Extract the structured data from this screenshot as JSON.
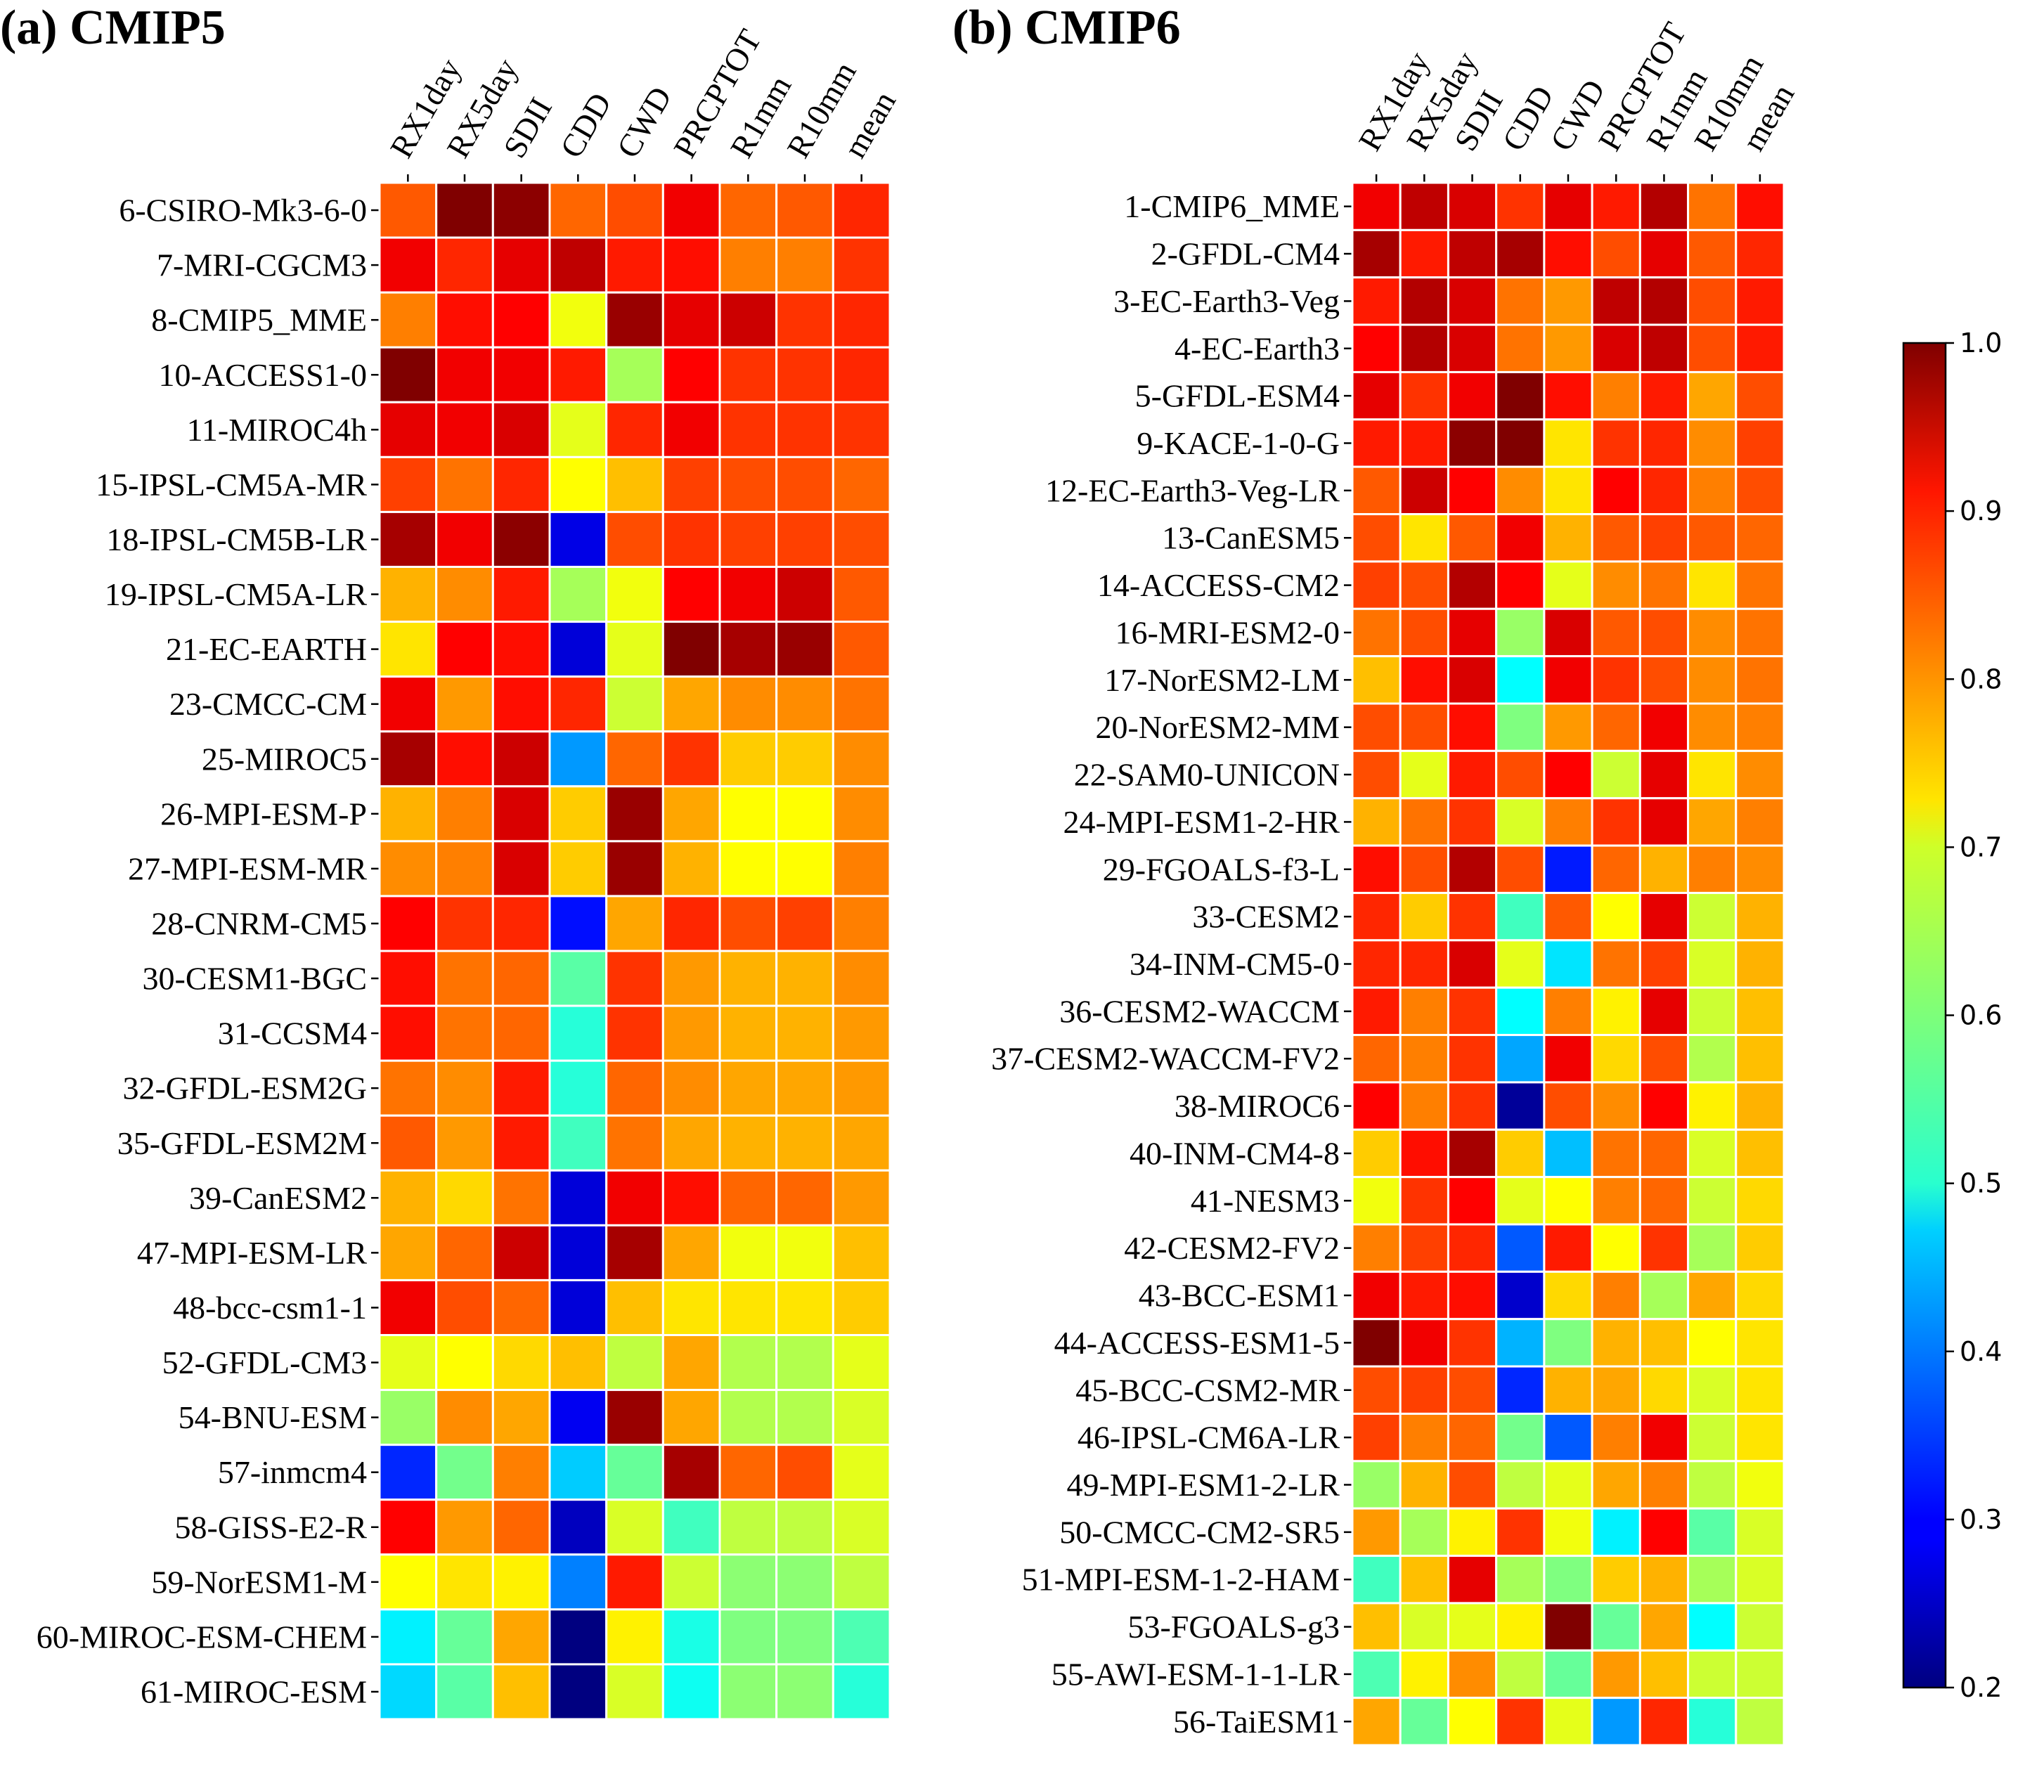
{
  "colors": {
    "colormap": "jet",
    "cell_border": "#ffffff"
  },
  "chart_data": [
    {
      "type": "heatmap",
      "title": "(a) CMIP5",
      "columns": [
        "RX1day",
        "RX5day",
        "SDII",
        "CDD",
        "CWD",
        "PRCPTOT",
        "R1mm",
        "R10mm",
        "mean"
      ],
      "rows": [
        "6-CSIRO-Mk3-6-0",
        "7-MRI-CGCM3",
        "8-CMIP5_MME",
        "10-ACCESS1-0",
        "11-MIROC4h",
        "15-IPSL-CM5A-MR",
        "18-IPSL-CM5B-LR",
        "19-IPSL-CM5A-LR",
        "21-EC-EARTH",
        "23-CMCC-CM",
        "25-MIROC5",
        "26-MPI-ESM-P",
        "27-MPI-ESM-MR",
        "28-CNRM-CM5",
        "30-CESM1-BGC",
        "31-CCSM4",
        "32-GFDL-ESM2G",
        "35-GFDL-ESM2M",
        "39-CanESM2",
        "47-MPI-ESM-LR",
        "48-bcc-csm1-1",
        "52-GFDL-CM3",
        "54-BNU-ESM",
        "57-inmcm4",
        "58-GISS-E2-R",
        "59-NorESM1-M",
        "60-MIROC-ESM-CHEM",
        "61-MIROC-ESM"
      ],
      "values": [
        [
          0.83,
          1.0,
          0.99,
          0.82,
          0.84,
          0.91,
          0.82,
          0.83,
          0.87
        ],
        [
          0.91,
          0.87,
          0.92,
          0.95,
          0.88,
          0.89,
          0.8,
          0.8,
          0.86
        ],
        [
          0.8,
          0.89,
          0.9,
          0.69,
          0.98,
          0.92,
          0.94,
          0.86,
          0.87
        ],
        [
          1.0,
          0.91,
          0.91,
          0.88,
          0.63,
          0.9,
          0.86,
          0.86,
          0.87
        ],
        [
          0.92,
          0.91,
          0.93,
          0.68,
          0.87,
          0.91,
          0.86,
          0.86,
          0.86
        ],
        [
          0.85,
          0.81,
          0.87,
          0.7,
          0.75,
          0.85,
          0.84,
          0.84,
          0.82
        ],
        [
          0.97,
          0.91,
          0.99,
          0.28,
          0.84,
          0.86,
          0.85,
          0.85,
          0.84
        ],
        [
          0.76,
          0.79,
          0.88,
          0.63,
          0.69,
          0.9,
          0.91,
          0.94,
          0.83
        ],
        [
          0.72,
          0.9,
          0.89,
          0.27,
          0.68,
          1.0,
          0.97,
          0.98,
          0.83
        ],
        [
          0.91,
          0.78,
          0.89,
          0.87,
          0.66,
          0.77,
          0.79,
          0.79,
          0.81
        ],
        [
          0.97,
          0.89,
          0.94,
          0.42,
          0.82,
          0.86,
          0.74,
          0.74,
          0.79
        ],
        [
          0.76,
          0.8,
          0.93,
          0.74,
          0.98,
          0.77,
          0.7,
          0.7,
          0.79
        ],
        [
          0.79,
          0.8,
          0.93,
          0.74,
          0.98,
          0.76,
          0.7,
          0.7,
          0.8
        ],
        [
          0.9,
          0.86,
          0.87,
          0.31,
          0.77,
          0.87,
          0.84,
          0.85,
          0.8
        ],
        [
          0.89,
          0.81,
          0.82,
          0.57,
          0.86,
          0.78,
          0.76,
          0.76,
          0.79
        ],
        [
          0.89,
          0.81,
          0.82,
          0.53,
          0.86,
          0.78,
          0.76,
          0.76,
          0.78
        ],
        [
          0.81,
          0.79,
          0.88,
          0.53,
          0.82,
          0.79,
          0.77,
          0.77,
          0.78
        ],
        [
          0.83,
          0.78,
          0.88,
          0.55,
          0.81,
          0.77,
          0.76,
          0.76,
          0.77
        ],
        [
          0.76,
          0.73,
          0.81,
          0.27,
          0.91,
          0.89,
          0.82,
          0.82,
          0.78
        ],
        [
          0.77,
          0.82,
          0.94,
          0.27,
          0.97,
          0.77,
          0.69,
          0.69,
          0.75
        ],
        [
          0.91,
          0.84,
          0.82,
          0.27,
          0.75,
          0.72,
          0.72,
          0.72,
          0.74
        ],
        [
          0.68,
          0.7,
          0.73,
          0.75,
          0.65,
          0.77,
          0.64,
          0.64,
          0.68
        ],
        [
          0.62,
          0.79,
          0.77,
          0.29,
          0.98,
          0.77,
          0.64,
          0.64,
          0.67
        ],
        [
          0.33,
          0.59,
          0.8,
          0.46,
          0.58,
          0.97,
          0.82,
          0.84,
          0.68
        ],
        [
          0.9,
          0.78,
          0.82,
          0.25,
          0.67,
          0.55,
          0.65,
          0.65,
          0.67
        ],
        [
          0.7,
          0.72,
          0.71,
          0.4,
          0.88,
          0.66,
          0.61,
          0.61,
          0.65
        ],
        [
          0.49,
          0.58,
          0.77,
          0.2,
          0.71,
          0.52,
          0.6,
          0.6,
          0.56
        ],
        [
          0.47,
          0.57,
          0.75,
          0.2,
          0.67,
          0.51,
          0.61,
          0.61,
          0.53
        ]
      ]
    },
    {
      "type": "heatmap",
      "title": "(b) CMIP6",
      "columns": [
        "RX1day",
        "RX5day",
        "SDII",
        "CDD",
        "CWD",
        "PRCPTOT",
        "R1mm",
        "R10mm",
        "mean"
      ],
      "rows": [
        "1-CMIP6_MME",
        "2-GFDL-CM4",
        "3-EC-Earth3-Veg",
        "4-EC-Earth3",
        "5-GFDL-ESM4",
        "9-KACE-1-0-G",
        "12-EC-Earth3-Veg-LR",
        "13-CanESM5",
        "14-ACCESS-CM2",
        "16-MRI-ESM2-0",
        "17-NorESM2-LM",
        "20-NorESM2-MM",
        "22-SAM0-UNICON",
        "24-MPI-ESM1-2-HR",
        "29-FGOALS-f3-L",
        "33-CESM2",
        "34-INM-CM5-0",
        "36-CESM2-WACCM",
        "37-CESM2-WACCM-FV2",
        "38-MIROC6",
        "40-INM-CM4-8",
        "41-NESM3",
        "42-CESM2-FV2",
        "43-BCC-ESM1",
        "44-ACCESS-ESM1-5",
        "45-BCC-CSM2-MR",
        "46-IPSL-CM6A-LR",
        "49-MPI-ESM1-2-LR",
        "50-CMCC-CM2-SR5",
        "51-MPI-ESM-1-2-HAM",
        "53-FGOALS-g3",
        "55-AWI-ESM-1-1-LR",
        "56-TaiESM1"
      ],
      "values": [
        [
          0.91,
          0.95,
          0.93,
          0.86,
          0.92,
          0.88,
          0.96,
          0.81,
          0.89
        ],
        [
          0.97,
          0.88,
          0.95,
          0.97,
          0.89,
          0.84,
          0.92,
          0.83,
          0.87
        ],
        [
          0.88,
          0.96,
          0.93,
          0.81,
          0.78,
          0.95,
          0.96,
          0.84,
          0.88
        ],
        [
          0.9,
          0.96,
          0.93,
          0.81,
          0.78,
          0.93,
          0.95,
          0.84,
          0.88
        ],
        [
          0.92,
          0.86,
          0.91,
          1.0,
          0.89,
          0.8,
          0.88,
          0.77,
          0.84
        ],
        [
          0.88,
          0.88,
          0.99,
          1.0,
          0.72,
          0.86,
          0.87,
          0.79,
          0.85
        ],
        [
          0.83,
          0.94,
          0.9,
          0.79,
          0.72,
          0.9,
          0.87,
          0.8,
          0.84
        ],
        [
          0.84,
          0.72,
          0.83,
          0.91,
          0.76,
          0.83,
          0.85,
          0.83,
          0.82
        ],
        [
          0.85,
          0.84,
          0.96,
          0.9,
          0.68,
          0.79,
          0.81,
          0.72,
          0.81
        ],
        [
          0.81,
          0.84,
          0.92,
          0.62,
          0.93,
          0.83,
          0.84,
          0.79,
          0.81
        ],
        [
          0.75,
          0.89,
          0.93,
          0.5,
          0.91,
          0.86,
          0.84,
          0.79,
          0.81
        ],
        [
          0.84,
          0.84,
          0.89,
          0.6,
          0.78,
          0.82,
          0.91,
          0.79,
          0.8
        ],
        [
          0.84,
          0.68,
          0.88,
          0.84,
          0.9,
          0.66,
          0.92,
          0.72,
          0.79
        ],
        [
          0.76,
          0.81,
          0.86,
          0.67,
          0.8,
          0.86,
          0.92,
          0.77,
          0.8
        ],
        [
          0.89,
          0.84,
          0.96,
          0.84,
          0.32,
          0.82,
          0.76,
          0.8,
          0.79
        ],
        [
          0.87,
          0.74,
          0.86,
          0.55,
          0.83,
          0.7,
          0.92,
          0.66,
          0.76
        ],
        [
          0.87,
          0.87,
          0.93,
          0.68,
          0.48,
          0.81,
          0.85,
          0.67,
          0.76
        ],
        [
          0.88,
          0.8,
          0.86,
          0.5,
          0.8,
          0.71,
          0.92,
          0.66,
          0.75
        ],
        [
          0.82,
          0.8,
          0.86,
          0.43,
          0.91,
          0.73,
          0.84,
          0.64,
          0.75
        ],
        [
          0.9,
          0.8,
          0.86,
          0.22,
          0.84,
          0.79,
          0.9,
          0.71,
          0.76
        ],
        [
          0.74,
          0.89,
          0.97,
          0.74,
          0.45,
          0.81,
          0.82,
          0.67,
          0.75
        ],
        [
          0.69,
          0.86,
          0.9,
          0.68,
          0.7,
          0.8,
          0.82,
          0.66,
          0.73
        ],
        [
          0.8,
          0.85,
          0.87,
          0.37,
          0.88,
          0.7,
          0.86,
          0.63,
          0.74
        ],
        [
          0.91,
          0.88,
          0.89,
          0.26,
          0.73,
          0.8,
          0.63,
          0.77,
          0.73
        ],
        [
          1.0,
          0.91,
          0.86,
          0.44,
          0.6,
          0.76,
          0.75,
          0.7,
          0.72
        ],
        [
          0.84,
          0.85,
          0.84,
          0.33,
          0.76,
          0.77,
          0.73,
          0.67,
          0.72
        ],
        [
          0.85,
          0.8,
          0.82,
          0.59,
          0.37,
          0.8,
          0.91,
          0.66,
          0.72
        ],
        [
          0.62,
          0.76,
          0.84,
          0.65,
          0.68,
          0.77,
          0.8,
          0.65,
          0.69
        ],
        [
          0.78,
          0.63,
          0.71,
          0.86,
          0.69,
          0.49,
          0.9,
          0.57,
          0.67
        ],
        [
          0.55,
          0.75,
          0.92,
          0.63,
          0.6,
          0.74,
          0.76,
          0.63,
          0.67
        ],
        [
          0.75,
          0.67,
          0.68,
          0.71,
          1.0,
          0.58,
          0.77,
          0.5,
          0.66
        ],
        [
          0.56,
          0.71,
          0.79,
          0.65,
          0.58,
          0.78,
          0.75,
          0.66,
          0.66
        ],
        [
          0.77,
          0.58,
          0.7,
          0.86,
          0.68,
          0.42,
          0.87,
          0.53,
          0.65
        ]
      ]
    }
  ],
  "colorbar": {
    "min": 0.2,
    "max": 1.0,
    "ticks": [
      "0.2",
      "0.3",
      "0.4",
      "0.5",
      "0.6",
      "0.7",
      "0.8",
      "0.9",
      "1.0"
    ]
  }
}
